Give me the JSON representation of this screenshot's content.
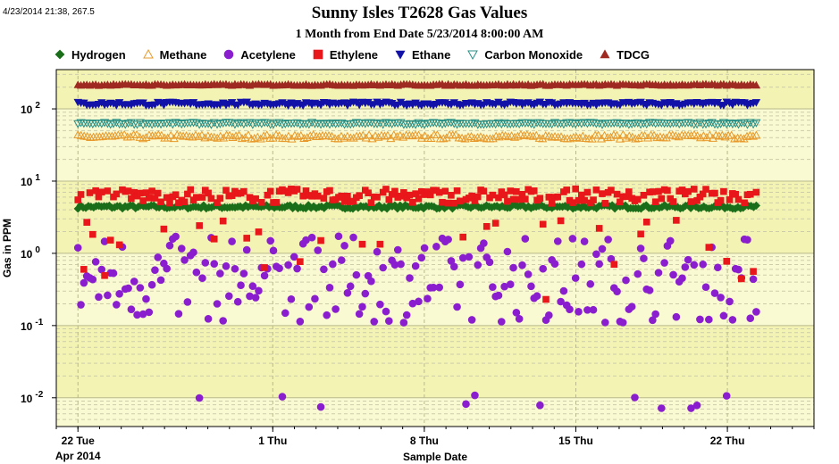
{
  "window": {
    "stamp": "4/23/2014 21:38, 267.5"
  },
  "chart_data": {
    "type": "scatter",
    "title": "Sunny Isles T2628 Gas Values",
    "subtitle": "1 Month from End Date 5/23/2014 8:00:00 AM",
    "xlabel": "Sample Date",
    "ylabel": "Gas in PPM",
    "y_scale": "log",
    "ylim": [
      0.004,
      350
    ],
    "xlim": [
      "2014-04-21T00:00",
      "2014-05-26T00:00"
    ],
    "x_ticks": [
      {
        "date": "2014-04-22",
        "label": "22 Tue",
        "sublabel": "Apr 2014"
      },
      {
        "date": "2014-05-01",
        "label": "1 Thu",
        "sublabel": ""
      },
      {
        "date": "2014-05-08",
        "label": "8 Thu",
        "sublabel": ""
      },
      {
        "date": "2014-05-15",
        "label": "15 Thu",
        "sublabel": ""
      },
      {
        "date": "2014-05-22",
        "label": "22 Thu",
        "sublabel": ""
      }
    ],
    "y_ticks": [
      {
        "value": 0.01,
        "base": "10",
        "exp": "-2"
      },
      {
        "value": 0.1,
        "base": "10",
        "exp": "-1"
      },
      {
        "value": 1,
        "base": "10",
        "exp": "0"
      },
      {
        "value": 10,
        "base": "10",
        "exp": "1"
      },
      {
        "value": 100,
        "base": "10",
        "exp": "2"
      }
    ],
    "grid": true,
    "legend_position": "top",
    "x_range": [
      "2014-04-22T00:00",
      "2014-05-23T08:00"
    ],
    "series": [
      {
        "name": "Hydrogen",
        "marker": "diamond",
        "color": "#1a6e1a",
        "filled": true,
        "count": 260,
        "approx_value": 4.4,
        "variation": 0.05
      },
      {
        "name": "Methane",
        "marker": "triangle-up",
        "color": "#e89a2c",
        "filled": false,
        "count": 220,
        "approx_value": 41,
        "variation": 0.06
      },
      {
        "name": "Acetylene",
        "marker": "circle",
        "color": "#8a1ecf",
        "filled": true,
        "count": 230,
        "approx_value": 0.5,
        "variation": 1.2
      },
      {
        "name": "Ethylene",
        "marker": "square",
        "color": "#e8171a",
        "filled": true,
        "count": 230,
        "approx_value": 6.2,
        "variation": 0.2
      },
      {
        "name": "Ethane",
        "marker": "triangle-down",
        "color": "#1212a8",
        "filled": true,
        "count": 230,
        "approx_value": 118,
        "variation": 0.05
      },
      {
        "name": "Carbon Monoxide",
        "marker": "triangle-down",
        "color": "#2a8f85",
        "filled": false,
        "count": 230,
        "approx_value": 63,
        "variation": 0.03
      },
      {
        "name": "TDCG",
        "marker": "triangle-up",
        "color": "#9e2a22",
        "filled": true,
        "count": 230,
        "approx_value": 215,
        "variation": 0.02
      }
    ]
  }
}
